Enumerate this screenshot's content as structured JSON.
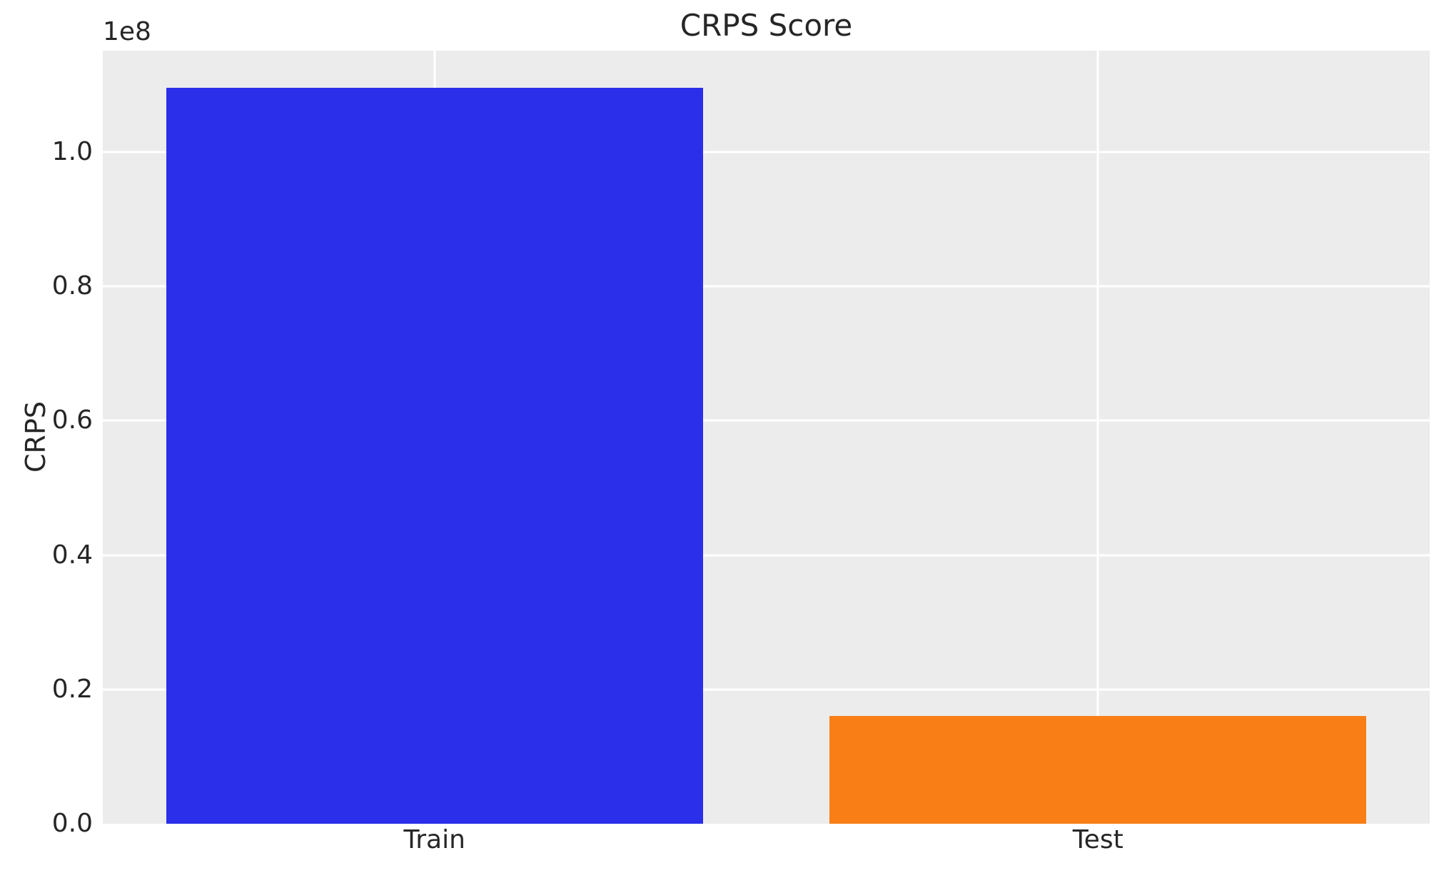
{
  "chart_data": {
    "type": "bar",
    "title": "CRPS Score",
    "xlabel": "",
    "ylabel": "CRPS",
    "y_scale_offset_label": "1e8",
    "categories": [
      "Train",
      "Test"
    ],
    "values": [
      109600000,
      16000000
    ],
    "ylim": [
      0,
      115100000
    ],
    "ytick_values": [
      0,
      20000000,
      40000000,
      60000000,
      80000000,
      100000000
    ],
    "ytick_labels": [
      "0.0",
      "0.2",
      "0.4",
      "0.6",
      "0.8",
      "1.0"
    ],
    "bar_colors": [
      "#2b2fe9",
      "#f97e16"
    ],
    "plot_background": "#ececec",
    "grid_color": "#ffffff",
    "text_color": "#262626",
    "grid": true,
    "legend": false
  }
}
